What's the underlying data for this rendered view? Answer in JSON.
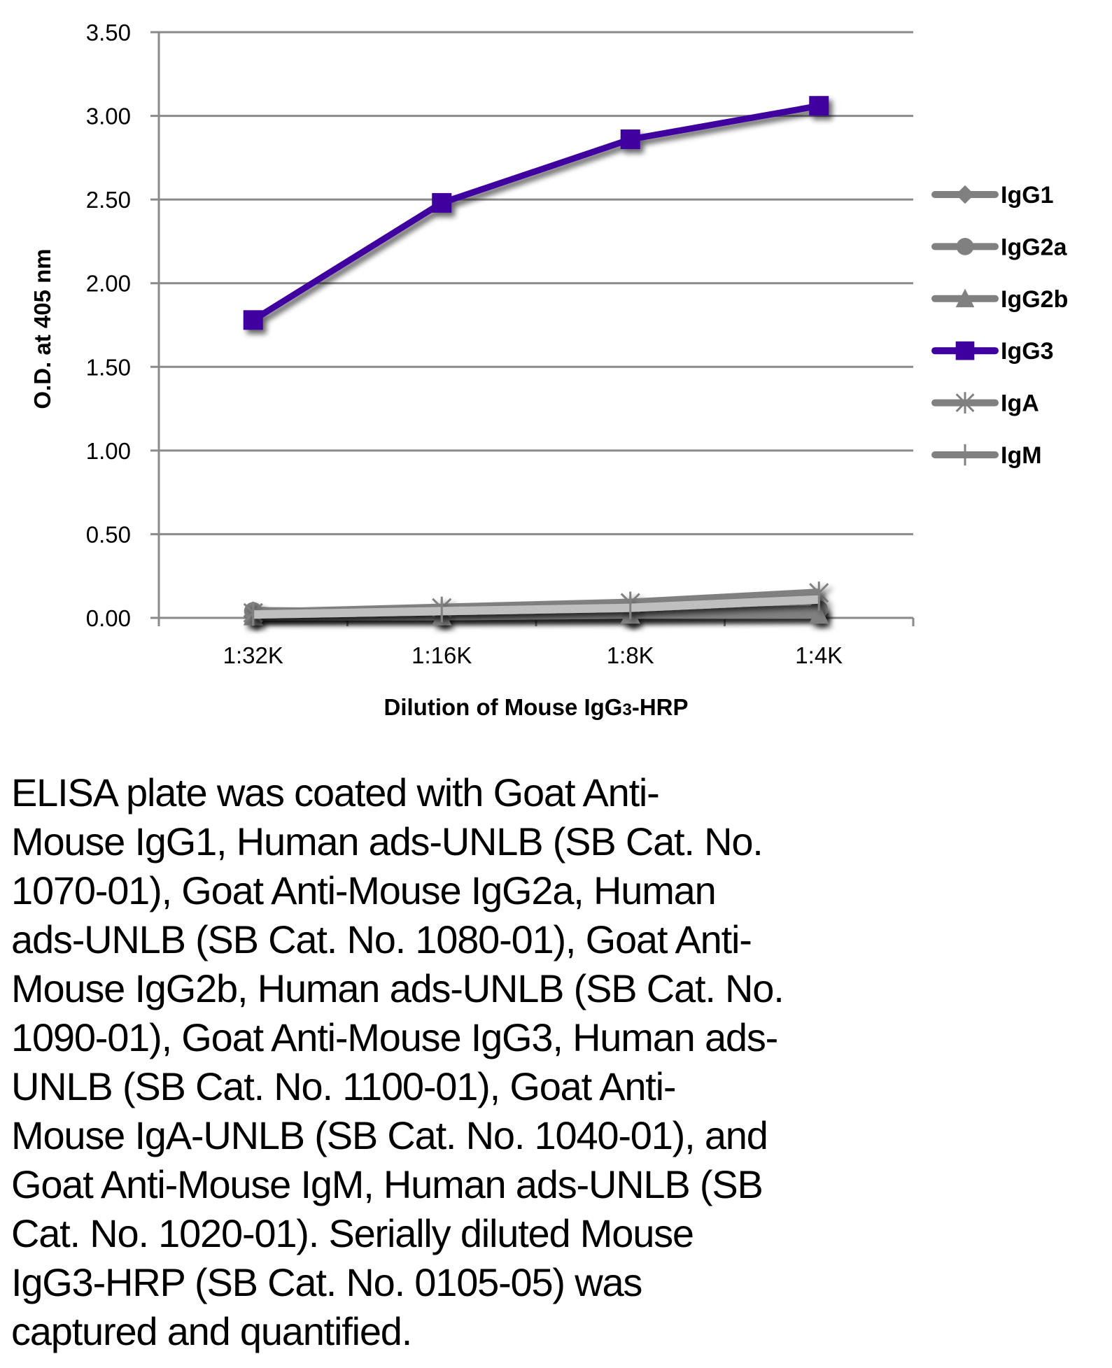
{
  "chart_data": {
    "type": "line",
    "title": "",
    "xlabel_parts": [
      "Dilution of Mouse IgG",
      "3",
      "-HRP"
    ],
    "xlabel": "Dilution of Mouse IgG3-HRP",
    "ylabel": "O.D. at 405 nm",
    "categories": [
      "1:32K",
      "1:16K",
      "1:8K",
      "1:4K"
    ],
    "ylim": [
      0,
      3.5
    ],
    "yticks": [
      "0.00",
      "0.50",
      "1.00",
      "1.50",
      "2.00",
      "2.50",
      "3.00",
      "3.50"
    ],
    "ytick_values": [
      0,
      0.5,
      1.0,
      1.5,
      2.0,
      2.5,
      3.0,
      3.5
    ],
    "grid": true,
    "legend_position": "right",
    "series": [
      {
        "name": "IgG1",
        "marker": "diamond",
        "color": "#808080",
        "values": [
          0.01,
          0.01,
          0.01,
          0.02
        ]
      },
      {
        "name": "IgG2a",
        "marker": "circle",
        "color": "#808080",
        "values": [
          0.04,
          0.03,
          0.03,
          0.05
        ]
      },
      {
        "name": "IgG2b",
        "marker": "triangle",
        "color": "#808080",
        "values": [
          0.01,
          0.01,
          0.02,
          0.02
        ]
      },
      {
        "name": "IgG3",
        "marker": "square",
        "color": "#3F00A0",
        "values": [
          1.78,
          2.48,
          2.86,
          3.06
        ]
      },
      {
        "name": "IgA",
        "marker": "star",
        "color": "#808080",
        "values": [
          0.03,
          0.06,
          0.09,
          0.15
        ]
      },
      {
        "name": "IgM",
        "marker": "plus",
        "color": "#808080",
        "line_color": "#BFBFBF",
        "values": [
          0.02,
          0.04,
          0.06,
          0.11
        ]
      }
    ]
  },
  "caption": {
    "lines": [
      "ELISA plate was coated with Goat Anti-",
      "Mouse IgG1, Human ads-UNLB (SB Cat. No.",
      "1070-01), Goat Anti-Mouse IgG2a, Human",
      "ads-UNLB (SB Cat. No. 1080-01), Goat Anti-",
      "Mouse IgG2b, Human ads-UNLB (SB Cat. No.",
      "1090-01), Goat Anti-Mouse IgG3, Human ads-",
      "UNLB (SB Cat. No. 1100-01), Goat Anti-",
      "Mouse IgA-UNLB (SB Cat. No. 1040-01), and",
      "Goat Anti-Mouse IgM, Human ads-UNLB (SB",
      "Cat. No. 1020-01).  Serially diluted Mouse",
      "IgG3-HRP (SB Cat. No. 0105-05) was",
      "captured and quantified."
    ]
  }
}
